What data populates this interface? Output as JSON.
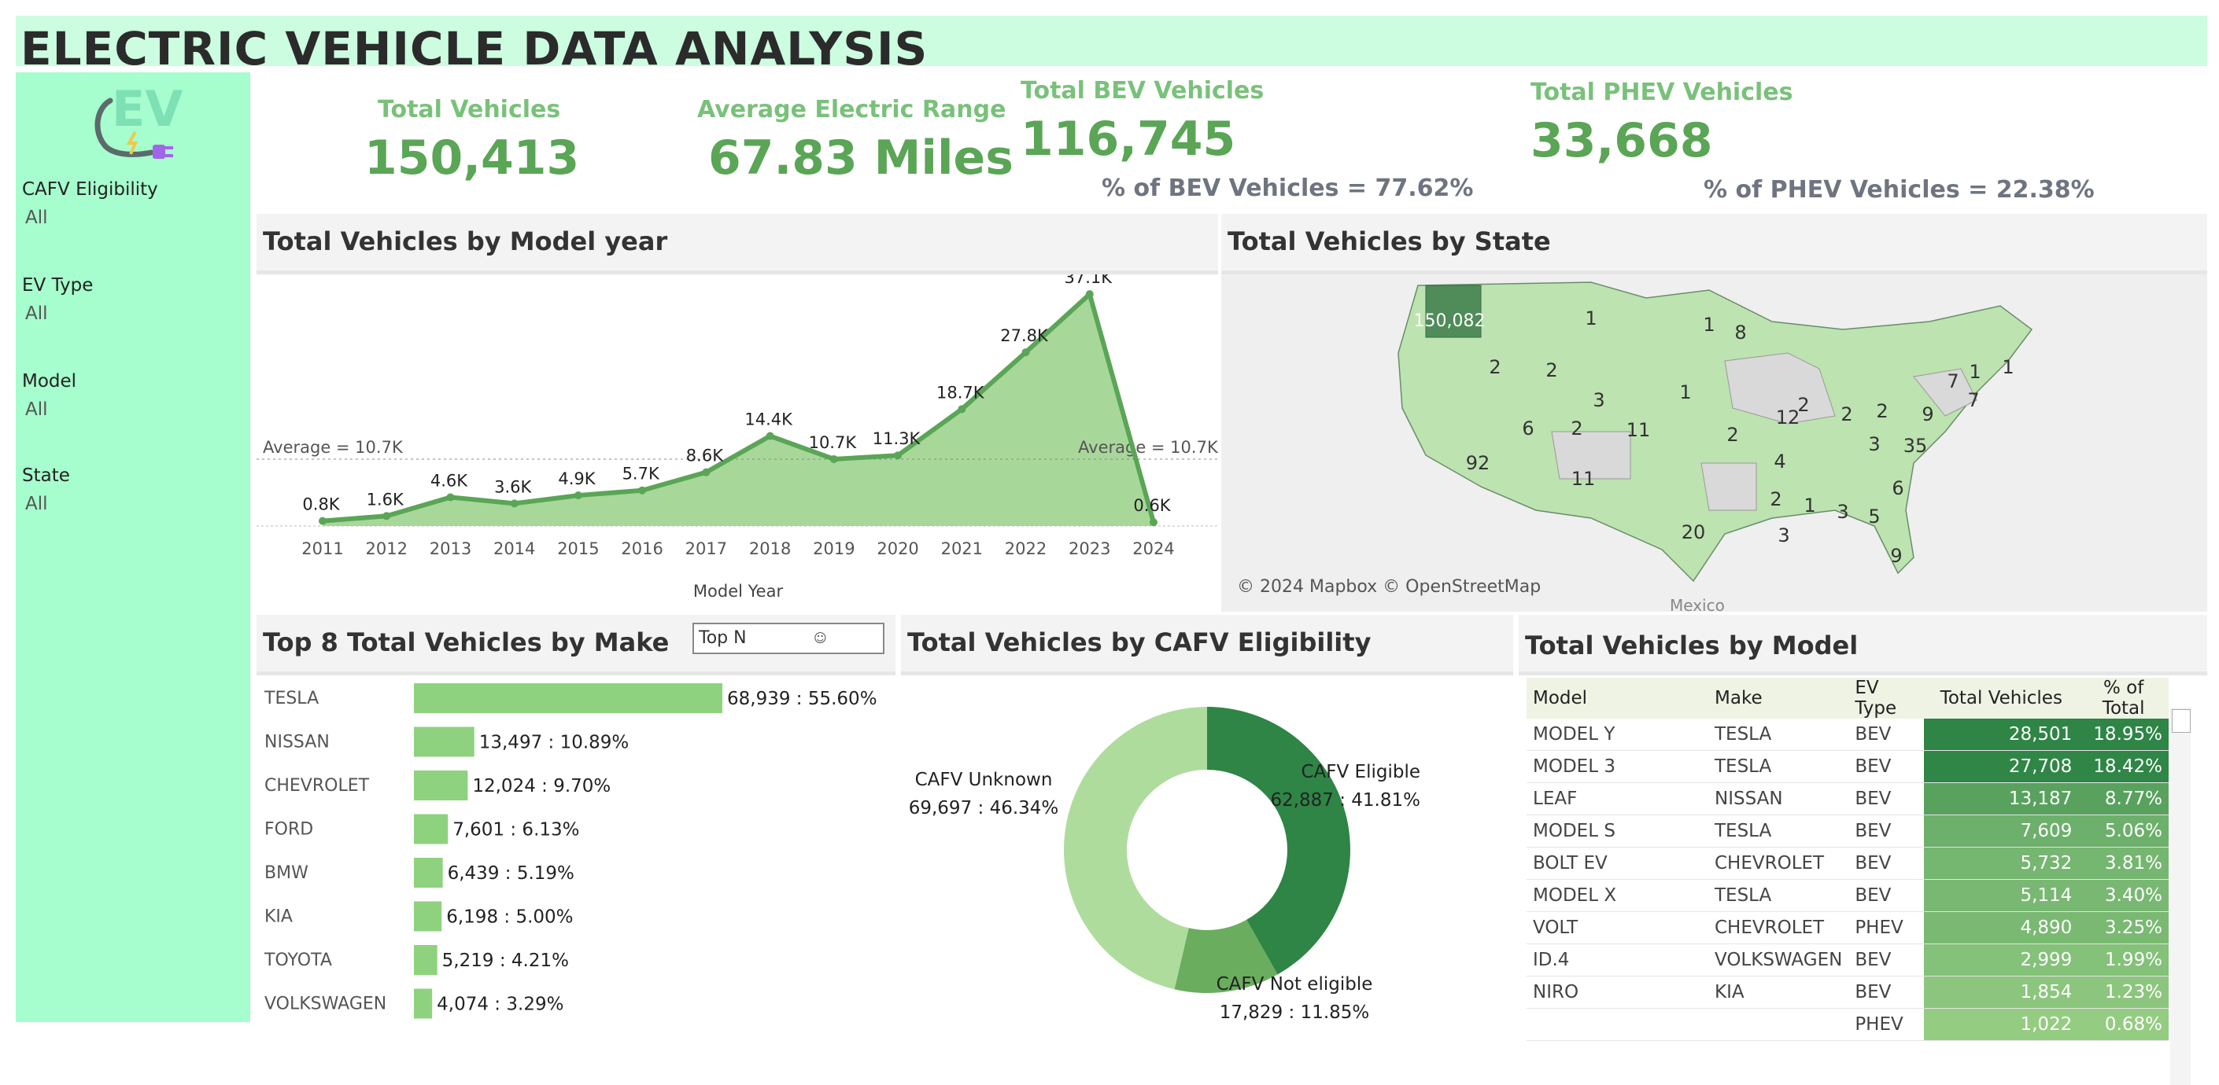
{
  "title": "ELECTRIC VEHICLE DATA ANALYSIS",
  "logo": {
    "text": "EV",
    "icon": "ev-plug-logo"
  },
  "filters": [
    {
      "label": "CAFV Eligibility",
      "value": "All"
    },
    {
      "label": "EV Type",
      "value": "All"
    },
    {
      "label": "Model",
      "value": "All"
    },
    {
      "label": "State",
      "value": "All"
    }
  ],
  "kpis": {
    "total_vehicles": {
      "label": "Total Vehicles",
      "value": "150,413"
    },
    "avg_range": {
      "label": "Average Electric Range",
      "value": "67.83 Miles"
    },
    "bev": {
      "label": "Total BEV Vehicles",
      "value": "116,745",
      "sub": "% of BEV Vehicles = 77.62%"
    },
    "phev": {
      "label": "Total PHEV Vehicles",
      "value": "33,668",
      "sub": "% of PHEV Vehicles = 22.38%"
    }
  },
  "colors": {
    "accent": "#5aa556",
    "light_green": "#a6fdcd",
    "header_green": "#ccfde0",
    "dark_green": "#2e8545",
    "bar_green": "#8ed27f"
  },
  "panels": {
    "model_year": {
      "title": "Total Vehicles by Model year"
    },
    "state": {
      "title": "Total Vehicles by State",
      "attribution": "© 2024 Mapbox © OpenStreetMap",
      "label_mexico": "Mexico"
    },
    "make": {
      "title": "Top 8 Total Vehicles by Make",
      "top_n_label": "Top N",
      "top_n_icon": "person-icon"
    },
    "cafv": {
      "title": "Total Vehicles by CAFV Eligibility"
    },
    "model": {
      "title": "Total Vehicles by Model"
    }
  },
  "chart_data": [
    {
      "type": "area",
      "xlabel": "Model Year",
      "categories": [
        "2011",
        "2012",
        "2013",
        "2014",
        "2015",
        "2016",
        "2017",
        "2018",
        "2019",
        "2020",
        "2021",
        "2022",
        "2023",
        "2024"
      ],
      "values": [
        800,
        1600,
        4600,
        3600,
        4900,
        5700,
        8600,
        14400,
        10700,
        11300,
        18700,
        27800,
        37100,
        600
      ],
      "data_labels": [
        "0.8K",
        "1.6K",
        "4.6K",
        "3.6K",
        "4.9K",
        "5.7K",
        "8.6K",
        "14.4K",
        "10.7K",
        "11.3K",
        "18.7K",
        "27.8K",
        "37.1K",
        "0.6K"
      ],
      "reference_line": {
        "value": 10700,
        "label": "Average = 10.7K"
      },
      "ylim": [
        0,
        38000
      ],
      "grid": false
    },
    {
      "type": "bar",
      "orientation": "horizontal",
      "categories": [
        "TESLA",
        "NISSAN",
        "CHEVROLET",
        "FORD",
        "BMW",
        "KIA",
        "TOYOTA",
        "VOLKSWAGEN"
      ],
      "values": [
        68939,
        13497,
        12024,
        7601,
        6439,
        6198,
        5219,
        4074
      ],
      "data_labels": [
        "68,939 : 55.60%",
        "13,497 : 10.89%",
        "12,024 : 9.70%",
        "7,601 : 6.13%",
        "6,439 : 5.19%",
        "6,198 : 5.00%",
        "5,219 : 4.21%",
        "4,074 : 3.29%"
      ]
    },
    {
      "type": "pie",
      "hole": true,
      "slices": [
        {
          "label": "CAFV Eligible",
          "value": 62887,
          "text": "62,887 : 41.81%",
          "color": "#2e8545"
        },
        {
          "label": "CAFV Not eligible",
          "value": 17829,
          "text": "17,829 : 11.85%",
          "color": "#6aad5e"
        },
        {
          "label": "CAFV Unknown",
          "value": 69697,
          "text": "69,697 : 46.34%",
          "color": "#aedc9d"
        }
      ]
    },
    {
      "type": "table",
      "columns": [
        "Model",
        "Make",
        "EV Type",
        "Total Vehicles",
        "% of Total"
      ],
      "rows": [
        [
          "MODEL Y",
          "TESLA",
          "BEV",
          "28,501",
          "18.95%"
        ],
        [
          "MODEL 3",
          "TESLA",
          "BEV",
          "27,708",
          "18.42%"
        ],
        [
          "LEAF",
          "NISSAN",
          "BEV",
          "13,187",
          "8.77%"
        ],
        [
          "MODEL S",
          "TESLA",
          "BEV",
          "7,609",
          "5.06%"
        ],
        [
          "BOLT EV",
          "CHEVROLET",
          "BEV",
          "5,732",
          "3.81%"
        ],
        [
          "MODEL X",
          "TESLA",
          "BEV",
          "5,114",
          "3.40%"
        ],
        [
          "VOLT",
          "CHEVROLET",
          "PHEV",
          "4,890",
          "3.25%"
        ],
        [
          "ID.4",
          "VOLKSWAGEN",
          "BEV",
          "2,999",
          "1.99%"
        ],
        [
          "NIRO",
          "KIA",
          "BEV",
          "1,854",
          "1.23%"
        ],
        [
          "",
          "",
          "PHEV",
          "1,022",
          "0.68%"
        ]
      ],
      "values": [
        28501,
        27708,
        13187,
        7609,
        5732,
        5114,
        4890,
        2999,
        1854,
        1022
      ]
    },
    {
      "type": "heatmap",
      "description_labels": [
        "150,082",
        "1",
        "8",
        "2",
        "2",
        "3",
        "1",
        "6",
        "2",
        "11",
        "2",
        "12",
        "2",
        "2",
        "2",
        "9",
        "7",
        "1",
        "7",
        "92",
        "4",
        "3",
        "35",
        "11",
        "2",
        "1",
        "3",
        "5",
        "6",
        "20",
        "3",
        "9",
        "1",
        "1"
      ]
    }
  ]
}
